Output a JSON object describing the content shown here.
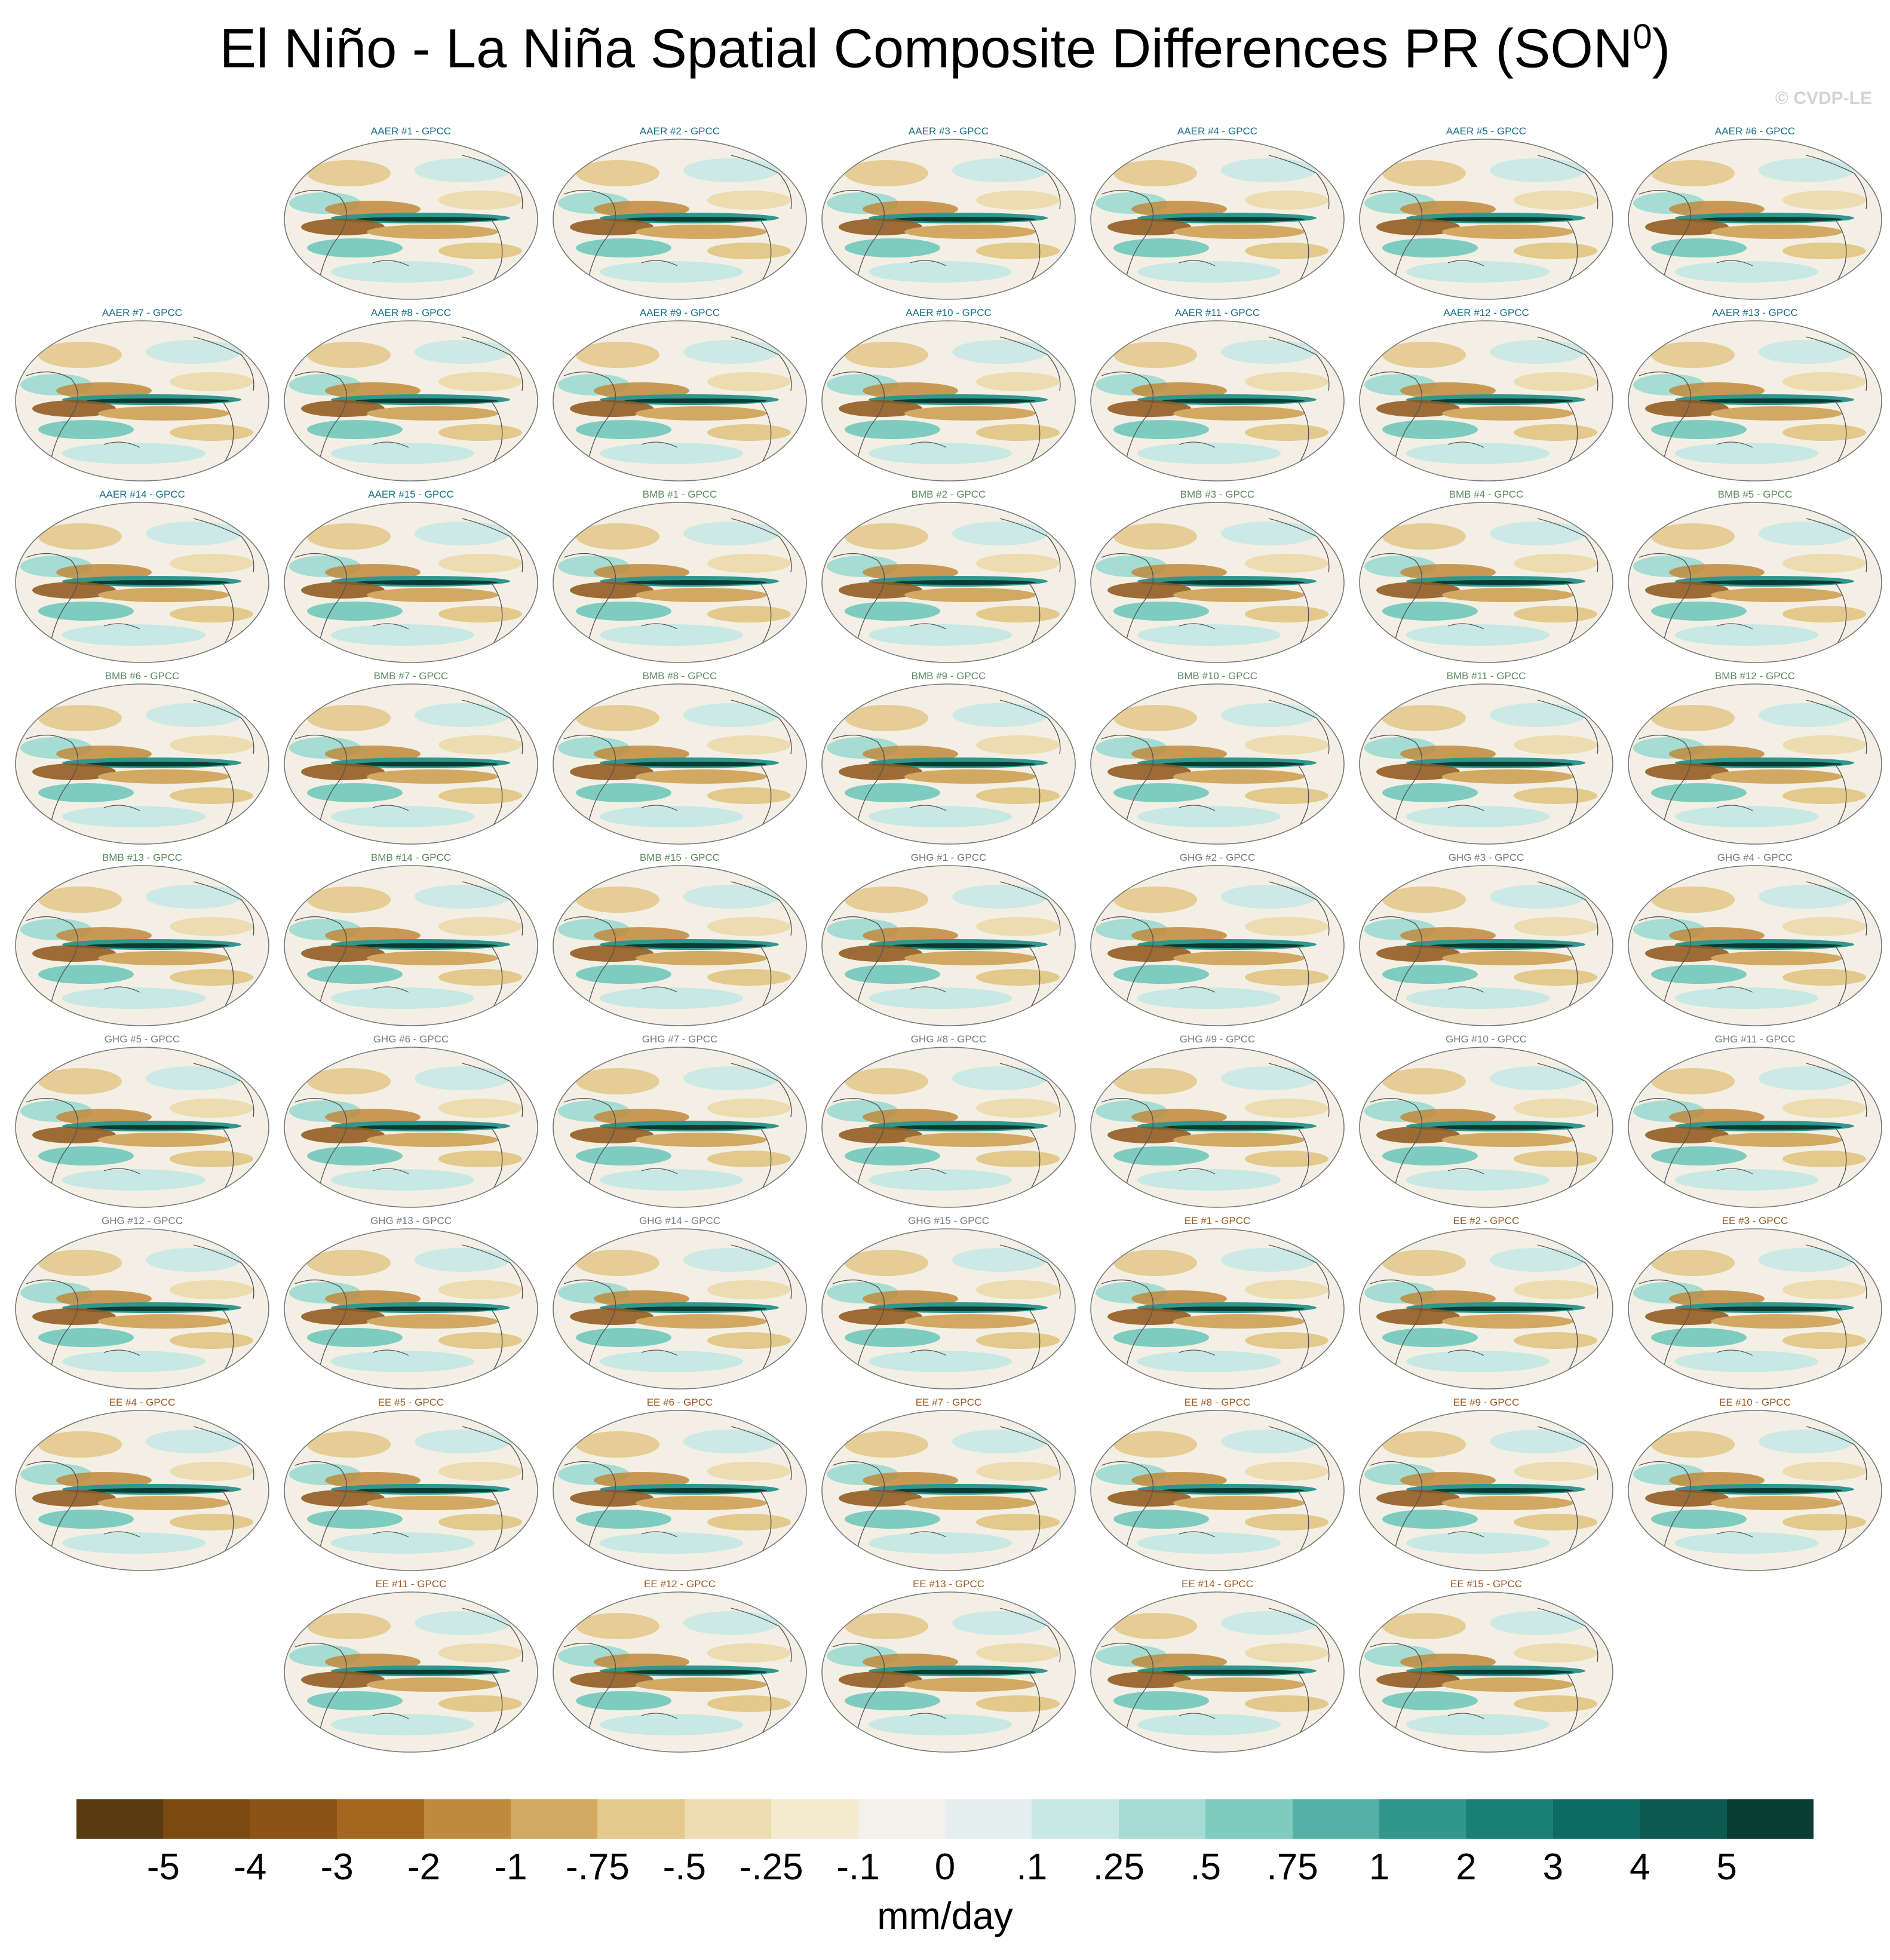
{
  "title": {
    "main": "El Niño - La Niña Spatial Composite Differences PR (SON",
    "sup": "0",
    "close": ")"
  },
  "watermark": "© CVDP-LE",
  "group_colors": {
    "AAER": "#1a6e87",
    "BMB": "#5c8a5e",
    "GHG": "#7a7a7a",
    "EE": "#9b5a1e"
  },
  "panels": [
    {
      "label": "AAER #1 - GPCC",
      "group": "AAER"
    },
    {
      "label": "AAER #2 - GPCC",
      "group": "AAER"
    },
    {
      "label": "AAER #3 - GPCC",
      "group": "AAER"
    },
    {
      "label": "AAER #4 - GPCC",
      "group": "AAER"
    },
    {
      "label": "AAER #5 - GPCC",
      "group": "AAER"
    },
    {
      "label": "AAER #6 - GPCC",
      "group": "AAER"
    },
    {
      "label": "AAER #7 - GPCC",
      "group": "AAER"
    },
    {
      "label": "AAER #8 - GPCC",
      "group": "AAER"
    },
    {
      "label": "AAER #9 - GPCC",
      "group": "AAER"
    },
    {
      "label": "AAER #10 - GPCC",
      "group": "AAER"
    },
    {
      "label": "AAER #11 - GPCC",
      "group": "AAER"
    },
    {
      "label": "AAER #12 - GPCC",
      "group": "AAER"
    },
    {
      "label": "AAER #13 - GPCC",
      "group": "AAER"
    },
    {
      "label": "AAER #14 - GPCC",
      "group": "AAER"
    },
    {
      "label": "AAER #15 - GPCC",
      "group": "AAER"
    },
    {
      "label": "BMB #1 - GPCC",
      "group": "BMB"
    },
    {
      "label": "BMB #2 - GPCC",
      "group": "BMB"
    },
    {
      "label": "BMB #3 - GPCC",
      "group": "BMB"
    },
    {
      "label": "BMB #4 - GPCC",
      "group": "BMB"
    },
    {
      "label": "BMB #5 - GPCC",
      "group": "BMB"
    },
    {
      "label": "BMB #6 - GPCC",
      "group": "BMB"
    },
    {
      "label": "BMB #7 - GPCC",
      "group": "BMB"
    },
    {
      "label": "BMB #8 - GPCC",
      "group": "BMB"
    },
    {
      "label": "BMB #9 - GPCC",
      "group": "BMB"
    },
    {
      "label": "BMB #10 - GPCC",
      "group": "BMB"
    },
    {
      "label": "BMB #11 - GPCC",
      "group": "BMB"
    },
    {
      "label": "BMB #12 - GPCC",
      "group": "BMB"
    },
    {
      "label": "BMB #13 - GPCC",
      "group": "BMB"
    },
    {
      "label": "BMB #14 - GPCC",
      "group": "BMB"
    },
    {
      "label": "BMB #15 - GPCC",
      "group": "BMB"
    },
    {
      "label": "GHG #1 - GPCC",
      "group": "GHG"
    },
    {
      "label": "GHG #2 - GPCC",
      "group": "GHG"
    },
    {
      "label": "GHG #3 - GPCC",
      "group": "GHG"
    },
    {
      "label": "GHG #4 - GPCC",
      "group": "GHG"
    },
    {
      "label": "GHG #5 - GPCC",
      "group": "GHG"
    },
    {
      "label": "GHG #6 - GPCC",
      "group": "GHG"
    },
    {
      "label": "GHG #7 - GPCC",
      "group": "GHG"
    },
    {
      "label": "GHG #8 - GPCC",
      "group": "GHG"
    },
    {
      "label": "GHG #9 - GPCC",
      "group": "GHG"
    },
    {
      "label": "GHG #10 - GPCC",
      "group": "GHG"
    },
    {
      "label": "GHG #11 - GPCC",
      "group": "GHG"
    },
    {
      "label": "GHG #12 - GPCC",
      "group": "GHG"
    },
    {
      "label": "GHG #13 - GPCC",
      "group": "GHG"
    },
    {
      "label": "GHG #14 - GPCC",
      "group": "GHG"
    },
    {
      "label": "GHG #15 - GPCC",
      "group": "GHG"
    },
    {
      "label": "EE #1 - GPCC",
      "group": "EE"
    },
    {
      "label": "EE #2 - GPCC",
      "group": "EE"
    },
    {
      "label": "EE #3 - GPCC",
      "group": "EE"
    },
    {
      "label": "EE #4 - GPCC",
      "group": "EE"
    },
    {
      "label": "EE #5 - GPCC",
      "group": "EE"
    },
    {
      "label": "EE #6 - GPCC",
      "group": "EE"
    },
    {
      "label": "EE #7 - GPCC",
      "group": "EE"
    },
    {
      "label": "EE #8 - GPCC",
      "group": "EE"
    },
    {
      "label": "EE #9 - GPCC",
      "group": "EE"
    },
    {
      "label": "EE #10 - GPCC",
      "group": "EE"
    },
    {
      "label": "EE #11 - GPCC",
      "group": "EE"
    },
    {
      "label": "EE #12 - GPCC",
      "group": "EE"
    },
    {
      "label": "EE #13 - GPCC",
      "group": "EE"
    },
    {
      "label": "EE #14 - GPCC",
      "group": "EE"
    },
    {
      "label": "EE #15 - GPCC",
      "group": "EE"
    }
  ],
  "colorbar": {
    "colors": [
      "#5a3a10",
      "#7a4a12",
      "#8d5316",
      "#a5661e",
      "#bf8a3c",
      "#d2a862",
      "#e3c98c",
      "#ecdcb0",
      "#f4ead0",
      "#f3f1ec",
      "#e4efee",
      "#c8e8e4",
      "#a5dcd3",
      "#7ecbbf",
      "#55b0a5",
      "#31968d",
      "#1a8077",
      "#0c6b62",
      "#0a5a50",
      "#073d33"
    ],
    "labels": [
      "-5",
      "-4",
      "-3",
      "-2",
      "-1",
      "-.75",
      "-.5",
      "-.25",
      "-.1",
      "0",
      ".1",
      ".25",
      ".5",
      ".75",
      "1",
      "2",
      "3",
      "4",
      "5"
    ],
    "units": "mm/day"
  }
}
